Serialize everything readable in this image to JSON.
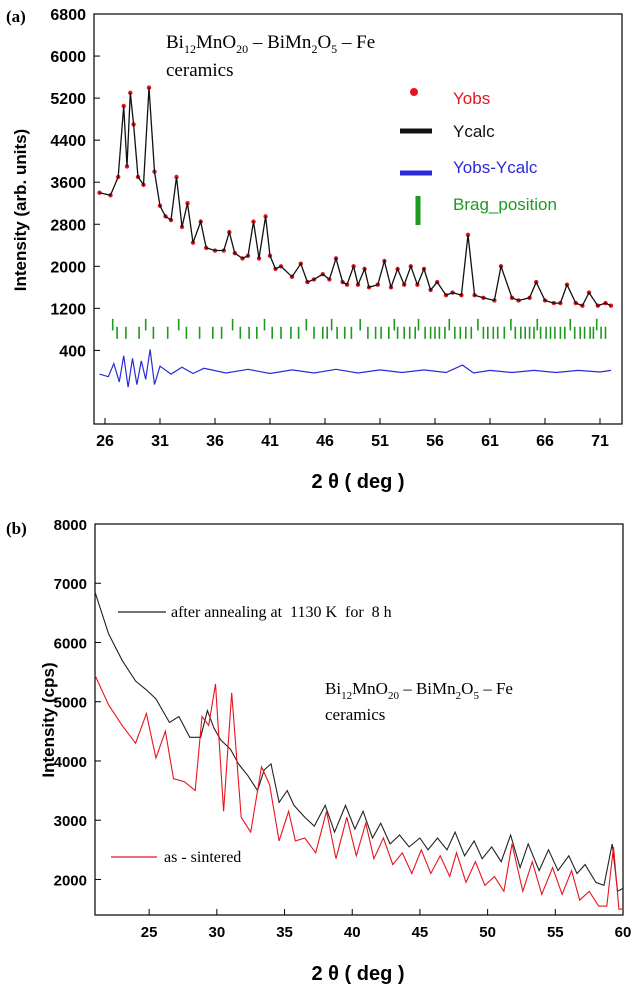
{
  "chart_data": [
    {
      "panel": "(a)",
      "type": "line",
      "sample_label": {
        "line1_parts": [
          "Bi",
          "12",
          "MnO",
          "20",
          " – BiMn",
          "2",
          "O",
          "5",
          " – Fe"
        ],
        "line2": "ceramics"
      },
      "xlabel": "2 θ ( deg )",
      "ylabel": "Intensity (arb. units)",
      "xlim": [
        25,
        73
      ],
      "ylim": [
        -1000,
        6800
      ],
      "xticks": [
        26,
        31,
        36,
        41,
        46,
        51,
        56,
        61,
        66,
        71
      ],
      "yticks": [
        400,
        1200,
        2000,
        2800,
        3600,
        4400,
        5200,
        6000,
        6800
      ],
      "legend_position": "top-right",
      "series": [
        {
          "name": "Yobs",
          "color": "#e8141c",
          "style": "points",
          "x": [
            25.5,
            26.5,
            27.2,
            27.7,
            28.0,
            28.3,
            28.6,
            29.0,
            29.5,
            30.0,
            30.5,
            31.0,
            31.5,
            32.0,
            32.5,
            33.0,
            33.5,
            34.0,
            34.7,
            35.2,
            36.0,
            36.8,
            37.3,
            37.8,
            38.5,
            39.0,
            39.5,
            40.0,
            40.6,
            41.0,
            41.5,
            42.0,
            43.0,
            43.8,
            44.4,
            45.0,
            45.8,
            46.4,
            47.0,
            47.6,
            48.0,
            48.6,
            49.0,
            49.6,
            50.0,
            50.8,
            51.4,
            52.0,
            52.6,
            53.2,
            53.8,
            54.4,
            55.0,
            55.6,
            56.2,
            57.0,
            57.6,
            58.4,
            59.0,
            59.6,
            60.4,
            61.4,
            62.0,
            63.0,
            63.6,
            64.6,
            65.2,
            66.0,
            66.8,
            67.4,
            68.0,
            68.8,
            69.4,
            70.0,
            70.8,
            71.5,
            72.0
          ],
          "values": [
            3400,
            3350,
            3700,
            5050,
            3900,
            5300,
            4700,
            3700,
            3550,
            5400,
            3800,
            3150,
            2950,
            2880,
            3700,
            2750,
            3200,
            2450,
            2850,
            2350,
            2300,
            2300,
            2650,
            2250,
            2150,
            2200,
            2850,
            2150,
            2950,
            2200,
            1950,
            2000,
            1800,
            2050,
            1700,
            1750,
            1850,
            1750,
            2150,
            1700,
            1650,
            2000,
            1650,
            1950,
            1600,
            1650,
            2100,
            1600,
            1950,
            1650,
            2000,
            1650,
            1950,
            1550,
            1700,
            1450,
            1500,
            1450,
            2600,
            1450,
            1400,
            1350,
            2000,
            1400,
            1350,
            1400,
            1700,
            1350,
            1300,
            1300,
            1650,
            1300,
            1250,
            1500,
            1250,
            1300,
            1250
          ]
        },
        {
          "name": "Ycalc",
          "color": "#111111",
          "style": "line",
          "x": [
            25.5,
            26.5,
            27.2,
            27.7,
            28.0,
            28.3,
            28.6,
            29.0,
            29.5,
            30.0,
            30.5,
            31.0,
            31.5,
            32.0,
            32.5,
            33.0,
            33.5,
            34.0,
            34.7,
            35.2,
            36.0,
            36.8,
            37.3,
            37.8,
            38.5,
            39.0,
            39.5,
            40.0,
            40.6,
            41.0,
            41.5,
            42.0,
            43.0,
            43.8,
            44.4,
            45.0,
            45.8,
            46.4,
            47.0,
            47.6,
            48.0,
            48.6,
            49.0,
            49.6,
            50.0,
            50.8,
            51.4,
            52.0,
            52.6,
            53.2,
            53.8,
            54.4,
            55.0,
            55.6,
            56.2,
            57.0,
            57.6,
            58.4,
            59.0,
            59.6,
            60.4,
            61.4,
            62.0,
            63.0,
            63.6,
            64.6,
            65.2,
            66.0,
            66.8,
            67.4,
            68.0,
            68.8,
            69.4,
            70.0,
            70.8,
            71.5,
            72.0
          ],
          "values": [
            3400,
            3350,
            3700,
            5050,
            3900,
            5300,
            4700,
            3700,
            3550,
            5400,
            3800,
            3150,
            2950,
            2880,
            3700,
            2750,
            3200,
            2450,
            2850,
            2350,
            2300,
            2300,
            2650,
            2250,
            2150,
            2200,
            2850,
            2150,
            2950,
            2200,
            1950,
            2000,
            1800,
            2050,
            1700,
            1750,
            1850,
            1750,
            2150,
            1700,
            1650,
            2000,
            1650,
            1950,
            1600,
            1650,
            2100,
            1600,
            1950,
            1650,
            2000,
            1650,
            1950,
            1550,
            1700,
            1450,
            1500,
            1450,
            2600,
            1450,
            1400,
            1350,
            2000,
            1400,
            1350,
            1400,
            1700,
            1350,
            1300,
            1300,
            1650,
            1300,
            1250,
            1500,
            1250,
            1300,
            1250
          ]
        },
        {
          "name": "Yobs-Ycalc",
          "color": "#2a2ad8",
          "style": "line",
          "x": [
            25.5,
            26.3,
            26.8,
            27.3,
            27.7,
            28.1,
            28.5,
            28.9,
            29.3,
            29.7,
            30.1,
            30.5,
            31.0,
            32.0,
            33.0,
            34.0,
            35.0,
            37.0,
            39.0,
            41.0,
            43.0,
            45.0,
            47.0,
            49.0,
            51.0,
            53.0,
            55.0,
            57.0,
            58.5,
            59.5,
            61.0,
            63.0,
            65.0,
            67.0,
            69.0,
            71.0,
            72.0
          ],
          "values": [
            -50,
            -100,
            150,
            -200,
            300,
            -300,
            250,
            -250,
            200,
            -150,
            420,
            -250,
            100,
            -50,
            80,
            -40,
            60,
            -30,
            40,
            -40,
            30,
            -30,
            40,
            -30,
            30,
            -20,
            30,
            -20,
            120,
            -30,
            20,
            -20,
            20,
            -20,
            20,
            -10,
            20
          ]
        },
        {
          "name": "Brag_position",
          "color": "#1e9a1e",
          "style": "ticks",
          "rows": [
            {
              "y_top": 1000,
              "y_bottom": 780,
              "x": [
                26.7,
                29.7,
                32.7,
                37.6,
                40.5,
                44.3,
                46.6,
                49.2,
                52.3,
                54.5,
                57.3,
                59.9,
                62.9,
                65.3,
                68.3,
                70.7
              ]
            },
            {
              "y_top": 850,
              "y_bottom": 620,
              "x": [
                27.1,
                27.9,
                29.1,
                30.4,
                31.7,
                33.4,
                34.6,
                35.8,
                36.6,
                38.3,
                39.1,
                39.8,
                41.2,
                42.0,
                42.9,
                43.6,
                45.0,
                45.8,
                46.2,
                47.1,
                47.8,
                48.4,
                49.9,
                50.6,
                51.1,
                51.8,
                52.6,
                53.2,
                53.7,
                54.2,
                55.1,
                55.6,
                56.0,
                56.4,
                56.9,
                57.8,
                58.3,
                58.8,
                59.3,
                60.4,
                60.8,
                61.3,
                61.7,
                62.3,
                63.3,
                63.8,
                64.2,
                64.6,
                65.0,
                65.6,
                66.1,
                66.5,
                66.9,
                67.4,
                67.8,
                68.7,
                69.2,
                69.6,
                70.1,
                70.4,
                71.1,
                71.5
              ]
            }
          ]
        }
      ]
    },
    {
      "panel": "(b)",
      "type": "line",
      "sample_label": {
        "line1_parts": [
          "Bi",
          "12",
          "MnO",
          "20",
          " – BiMn",
          "2",
          "O",
          "5",
          " – Fe"
        ],
        "line2": "ceramics"
      },
      "xlabel": "2 θ ( deg )",
      "ylabel": "Intensity (cps)",
      "xlim": [
        21,
        60
      ],
      "ylim": [
        1400,
        8000
      ],
      "xticks": [
        25,
        30,
        35,
        40,
        45,
        50,
        55,
        60
      ],
      "yticks": [
        2000,
        3000,
        4000,
        5000,
        6000,
        7000,
        8000
      ],
      "series": [
        {
          "name": "after annealing at  1130 K  for  8 h",
          "color": "#222222",
          "x": [
            21.0,
            22.0,
            23.0,
            24.0,
            24.8,
            25.5,
            26.5,
            27.2,
            28.0,
            28.8,
            29.3,
            29.8,
            30.3,
            31.0,
            31.6,
            32.3,
            33.0,
            33.5,
            34.0,
            34.6,
            35.2,
            35.7,
            36.5,
            37.2,
            38.0,
            38.7,
            39.5,
            40.2,
            40.8,
            41.5,
            42.1,
            42.8,
            43.5,
            44.2,
            45.0,
            45.6,
            46.3,
            47.0,
            47.6,
            48.3,
            49.0,
            49.6,
            50.3,
            51.0,
            51.7,
            52.4,
            53.0,
            53.8,
            54.5,
            55.2,
            56.0,
            56.6,
            57.2,
            58.0,
            58.6,
            59.2,
            59.6,
            60.0
          ],
          "values": [
            6850,
            6150,
            5700,
            5350,
            5200,
            5050,
            4650,
            4750,
            4400,
            4400,
            4850,
            4550,
            4350,
            4200,
            3950,
            3750,
            3500,
            3850,
            3950,
            3300,
            3500,
            3250,
            3050,
            2900,
            3250,
            2800,
            3250,
            2850,
            3150,
            2700,
            2950,
            2600,
            2750,
            2550,
            2700,
            2500,
            2700,
            2500,
            2800,
            2400,
            2650,
            2350,
            2550,
            2300,
            2750,
            2200,
            2600,
            2150,
            2500,
            2150,
            2400,
            2100,
            2250,
            1950,
            1900,
            2600,
            1800,
            1850
          ]
        },
        {
          "name": "as - sintered",
          "color": "#e8141c",
          "x": [
            21.0,
            22.0,
            23.0,
            24.0,
            24.8,
            25.5,
            26.2,
            26.8,
            27.6,
            28.4,
            28.9,
            29.4,
            29.9,
            30.5,
            31.1,
            31.8,
            32.5,
            33.3,
            33.9,
            34.6,
            35.3,
            35.8,
            36.5,
            37.3,
            38.1,
            38.8,
            39.6,
            40.3,
            41.0,
            41.6,
            42.3,
            43.0,
            43.7,
            44.4,
            45.1,
            45.8,
            46.5,
            47.2,
            47.7,
            48.4,
            49.1,
            49.8,
            50.5,
            51.2,
            51.8,
            52.6,
            53.3,
            54.0,
            54.8,
            55.5,
            56.2,
            56.8,
            57.5,
            58.2,
            58.8,
            59.3,
            59.7,
            60.0
          ],
          "values": [
            5450,
            4950,
            4600,
            4300,
            4800,
            4050,
            4500,
            3700,
            3650,
            3500,
            4750,
            4600,
            5300,
            3150,
            5150,
            3050,
            2800,
            3900,
            3600,
            2650,
            3150,
            2650,
            2700,
            2450,
            3150,
            2350,
            3050,
            2400,
            2950,
            2350,
            2700,
            2250,
            2450,
            2100,
            2500,
            2100,
            2400,
            2050,
            2450,
            1950,
            2300,
            1900,
            2050,
            1800,
            2600,
            1800,
            2300,
            1750,
            2200,
            1750,
            2150,
            1650,
            1800,
            1550,
            1550,
            2550,
            1500,
            1500
          ]
        }
      ]
    }
  ]
}
